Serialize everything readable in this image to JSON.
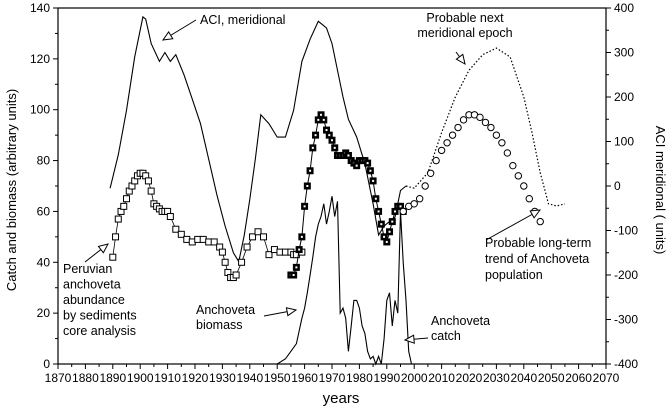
{
  "chart_data": {
    "type": "line",
    "title": "",
    "xlabel": "years",
    "ylabel_left": "Catch and biomass (arbitrary units)",
    "ylabel_right": "ACI meridional ( units)",
    "xlim": [
      1870,
      2070
    ],
    "ylim_left": [
      0,
      140
    ],
    "ylim_right": [
      -400,
      400
    ],
    "x_ticks": [
      "1870",
      "1880",
      "1890",
      "1900",
      "1910",
      "1920",
      "1930",
      "1940",
      "1950",
      "1960",
      "1970",
      "1980",
      "1990",
      "2000",
      "2010",
      "2020",
      "2030",
      "2040",
      "2050",
      "2060",
      "2070"
    ],
    "y_ticks_left": [
      "0",
      "20",
      "40",
      "60",
      "80",
      "100",
      "120",
      "140"
    ],
    "y_ticks_right": [
      "-400",
      "-300",
      "-200",
      "-100",
      "0",
      "100",
      "200",
      "300",
      "400"
    ],
    "grid": false,
    "series": [
      {
        "name": "ACI, meridional",
        "axis": "right",
        "style": "solid",
        "x": [
          1889,
          1892,
          1895,
          1898,
          1901,
          1902,
          1904,
          1907,
          1909,
          1911,
          1913,
          1916,
          1919,
          1922,
          1925,
          1928,
          1931,
          1934,
          1936,
          1938,
          1940,
          1942,
          1944,
          1947,
          1950,
          1953,
          1956,
          1959,
          1962,
          1965,
          1968,
          1970,
          1972,
          1974,
          1976,
          1979,
          1982,
          1985,
          1987,
          1989,
          1991,
          1993,
          1995,
          1997
        ],
        "values": [
          -5,
          70,
          170,
          290,
          380,
          375,
          320,
          280,
          300,
          280,
          295,
          250,
          195,
          140,
          60,
          -20,
          -90,
          -150,
          -170,
          -110,
          -30,
          60,
          160,
          140,
          110,
          110,
          170,
          280,
          330,
          370,
          355,
          320,
          260,
          200,
          150,
          110,
          50,
          -40,
          -110,
          -90,
          -80,
          -70,
          -10,
          0
        ]
      },
      {
        "name": "Probable next meridional epoch",
        "axis": "right",
        "style": "dotted",
        "x": [
          1997,
          2000,
          2005,
          2010,
          2015,
          2020,
          2025,
          2030,
          2035,
          2040,
          2043,
          2046,
          2049,
          2052,
          2055
        ],
        "values": [
          0,
          -5,
          30,
          120,
          200,
          260,
          295,
          310,
          290,
          200,
          120,
          30,
          -40,
          -45,
          -40
        ]
      },
      {
        "name": "Peruvian anchoveta abundance by sediments core analysis",
        "axis": "left",
        "style": "open-squares",
        "x": [
          1890,
          1891,
          1892,
          1893,
          1894,
          1895,
          1896,
          1897,
          1898,
          1899,
          1900,
          1901,
          1902,
          1903,
          1904,
          1905,
          1906,
          1907,
          1908,
          1909,
          1910,
          1911,
          1913,
          1915,
          1917,
          1919,
          1921,
          1923,
          1925,
          1927,
          1929,
          1930,
          1931,
          1932,
          1933,
          1934,
          1935,
          1937,
          1939,
          1941,
          1943,
          1945,
          1947,
          1949,
          1951,
          1953,
          1955,
          1956,
          1957,
          1959
        ],
        "values": [
          42,
          50,
          57,
          60,
          62,
          65,
          68,
          70,
          72,
          74,
          75,
          75,
          74,
          72,
          68,
          63,
          62,
          61,
          60,
          60,
          60,
          58,
          53,
          51,
          49,
          48,
          49,
          49,
          48,
          48,
          46,
          44,
          40,
          36,
          34,
          34,
          35,
          40,
          46,
          50,
          52,
          50,
          43,
          45,
          44,
          44,
          44,
          43,
          43,
          44
        ]
      },
      {
        "name": "Anchoveta biomass",
        "axis": "left",
        "style": "filled-squares",
        "x": [
          1955,
          1956,
          1957,
          1958,
          1959,
          1960,
          1961,
          1962,
          1963,
          1964,
          1965,
          1966,
          1967,
          1968,
          1969,
          1970,
          1971,
          1972,
          1973,
          1974,
          1975,
          1976,
          1977,
          1978,
          1979,
          1980,
          1981,
          1982,
          1983,
          1984,
          1985,
          1986,
          1987,
          1988,
          1989,
          1990,
          1991,
          1992,
          1993,
          1994,
          1995,
          1996
        ],
        "values": [
          35,
          35,
          38,
          45,
          50,
          62,
          70,
          76,
          85,
          90,
          96,
          98,
          96,
          92,
          90,
          88,
          85,
          82,
          82,
          82,
          83,
          82,
          80,
          79,
          78,
          80,
          80,
          80,
          79,
          76,
          72,
          65,
          60,
          55,
          50,
          48,
          52,
          56,
          60,
          62,
          62,
          60
        ]
      },
      {
        "name": "Anchoveta catch",
        "axis": "left",
        "style": "solid",
        "x": [
          1945,
          1950,
          1953,
          1955,
          1957,
          1959,
          1960,
          1961,
          1962,
          1963,
          1964,
          1965,
          1966,
          1967,
          1968,
          1969,
          1970,
          1971,
          1972,
          1973,
          1974,
          1975,
          1976,
          1977,
          1978,
          1979,
          1980,
          1981,
          1982,
          1983,
          1984,
          1985,
          1986,
          1987,
          1988,
          1989,
          1990,
          1991,
          1992,
          1993,
          1994,
          1995,
          1996,
          1997,
          1998,
          1999
        ],
        "values": [
          0,
          0,
          2,
          5,
          8,
          18,
          22,
          28,
          35,
          42,
          50,
          55,
          58,
          63,
          55,
          60,
          66,
          58,
          64,
          20,
          22,
          18,
          5,
          15,
          25,
          25,
          22,
          15,
          12,
          5,
          2,
          3,
          0,
          3,
          0,
          10,
          25,
          28,
          15,
          25,
          20,
          60,
          40,
          25,
          5,
          0
        ]
      },
      {
        "name": "Probable long-term trend of Anchoveta population",
        "axis": "left",
        "style": "open-circles",
        "x": [
          1996,
          1998,
          2000,
          2002,
          2004,
          2006,
          2008,
          2010,
          2012,
          2014,
          2016,
          2018,
          2020,
          2022,
          2024,
          2026,
          2028,
          2030,
          2032,
          2034,
          2036,
          2038,
          2040,
          2042,
          2044,
          2046
        ],
        "values": [
          60,
          62,
          63,
          65,
          70,
          75,
          80,
          84,
          87,
          90,
          93,
          96,
          98,
          98,
          97,
          95,
          93,
          90,
          87,
          83,
          78,
          74,
          70,
          65,
          60,
          56
        ]
      }
    ],
    "annotations": [
      {
        "lines": [
          "ACI, meridional"
        ]
      },
      {
        "lines": [
          "Probable next",
          "meridional  epoch"
        ]
      },
      {
        "lines": [
          "Peruvian",
          "anchoveta",
          "abundance",
          "by  sediments",
          "core  analysis"
        ]
      },
      {
        "lines": [
          "Anchoveta",
          "biomass"
        ]
      },
      {
        "lines": [
          "Anchoveta",
          "catch"
        ]
      },
      {
        "lines": [
          "Probable long-term",
          "trend of  Anchoveta",
          "population"
        ]
      }
    ]
  }
}
